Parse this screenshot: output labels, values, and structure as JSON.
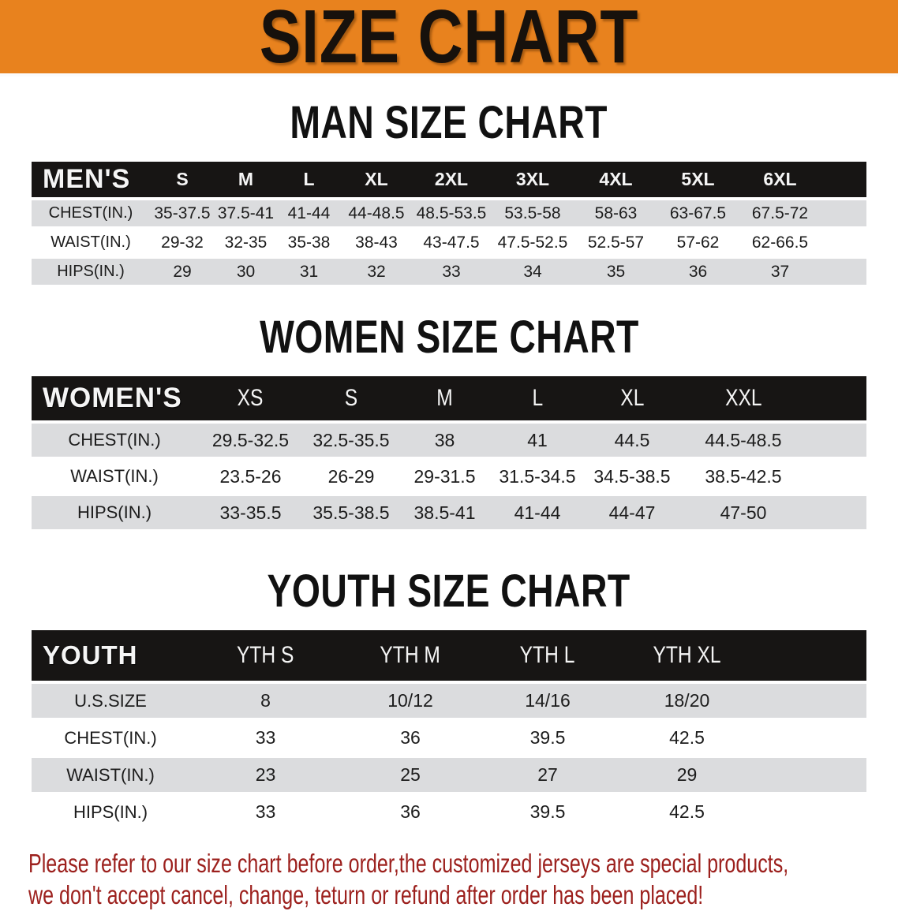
{
  "banner": {
    "title": "SIZE CHART"
  },
  "colors": {
    "banner_bg": "#E8821E",
    "table_header_bg": "#171514",
    "stripe_row_bg": "#DBDCDE",
    "title_text": "#111111",
    "disclaimer_text": "#9C201D"
  },
  "sections": [
    {
      "title": "MAN SIZE CHART",
      "table": {
        "header_label": "MEN'S",
        "columns": [
          "S",
          "M",
          "L",
          "XL",
          "2XL",
          "3XL",
          "4XL",
          "5XL",
          "6XL"
        ],
        "rows": [
          {
            "label": "CHEST(IN.)",
            "values": [
              "35-37.5",
              "37.5-41",
              "41-44",
              "44-48.5",
              "48.5-53.5",
              "53.5-58",
              "58-63",
              "63-67.5",
              "67.5-72"
            ]
          },
          {
            "label": "WAIST(IN.)",
            "values": [
              "29-32",
              "32-35",
              "35-38",
              "38-43",
              "43-47.5",
              "47.5-52.5",
              "52.5-57",
              "57-62",
              "62-66.5"
            ]
          },
          {
            "label": "HIPS(IN.)",
            "values": [
              "29",
              "30",
              "31",
              "32",
              "33",
              "34",
              "35",
              "36",
              "37"
            ]
          }
        ]
      }
    },
    {
      "title": "WOMEN SIZE CHART",
      "table": {
        "header_label": "WOMEN'S",
        "columns": [
          "XS",
          "S",
          "M",
          "L",
          "XL",
          "XXL"
        ],
        "rows": [
          {
            "label": "CHEST(IN.)",
            "values": [
              "29.5-32.5",
              "32.5-35.5",
              "38",
              "41",
              "44.5",
              "44.5-48.5"
            ]
          },
          {
            "label": "WAIST(IN.)",
            "values": [
              "23.5-26",
              "26-29",
              "29-31.5",
              "31.5-34.5",
              "34.5-38.5",
              "38.5-42.5"
            ]
          },
          {
            "label": "HIPS(IN.)",
            "values": [
              "33-35.5",
              "35.5-38.5",
              "38.5-41",
              "41-44",
              "44-47",
              "47-50"
            ]
          }
        ]
      }
    },
    {
      "title": "YOUTH SIZE CHART",
      "table": {
        "header_label": "YOUTH",
        "columns": [
          "YTH S",
          "YTH M",
          "YTH L",
          "YTH XL"
        ],
        "rows": [
          {
            "label": "U.S.SIZE",
            "values": [
              "8",
              "10/12",
              "14/16",
              "18/20"
            ]
          },
          {
            "label": "CHEST(IN.)",
            "values": [
              "33",
              "36",
              "39.5",
              "42.5"
            ]
          },
          {
            "label": "WAIST(IN.)",
            "values": [
              "23",
              "25",
              "27",
              "29"
            ]
          },
          {
            "label": "HIPS(IN.)",
            "values": [
              "33",
              "36",
              "39.5",
              "42.5"
            ]
          }
        ]
      }
    }
  ],
  "disclaimer": {
    "line1": "Please refer to our size chart before order,the customized jerseys are special products,",
    "line2": "we don't accept cancel, change, teturn or refund after order has been placed!"
  }
}
